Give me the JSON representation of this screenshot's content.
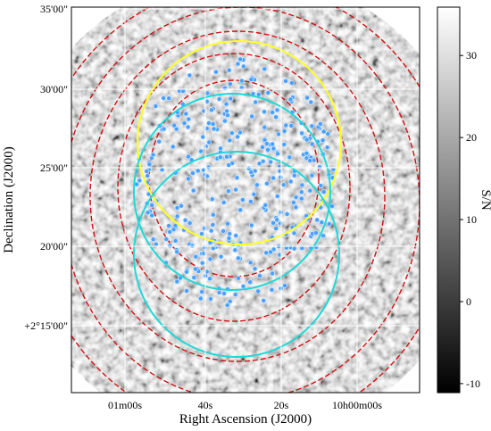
{
  "chart_data": {
    "type": "image",
    "x_label": "Right Ascension (J2000)",
    "y_label": "Declination (J2000)",
    "x_tick_labels": [
      "01m00s",
      "40s",
      "20s",
      "10h00m00s"
    ],
    "y_tick_labels": [
      "35'00\"",
      "30'00\"",
      "25'00\"",
      "20'00\"",
      "+2°15'00\""
    ],
    "colorbar": {
      "label": "S/N",
      "lim": [
        -11.1,
        35.9
      ],
      "ticks": [
        -10,
        0,
        10,
        20,
        30
      ]
    }
  }
}
